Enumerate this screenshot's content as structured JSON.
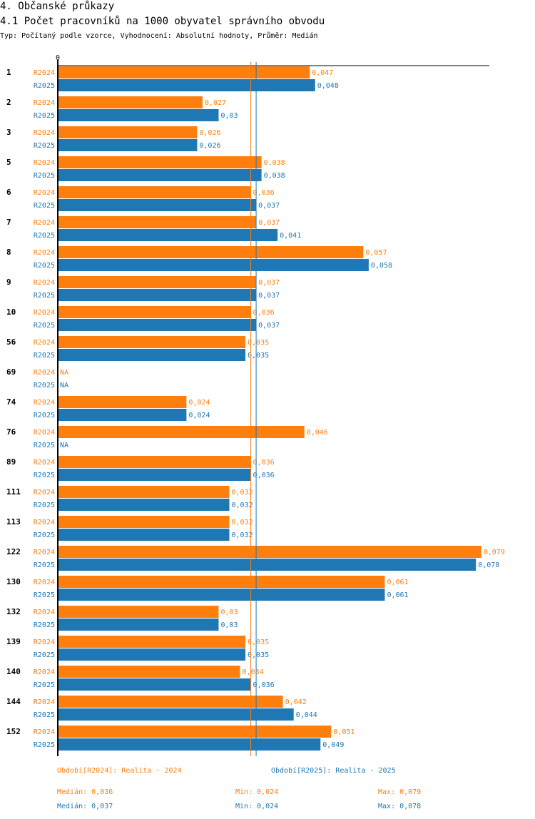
{
  "section_title": "4. Občanské průkazy",
  "chart_title": "4.1 Počet pracovníků na 1000 obyvatel správního obvodu",
  "subtitle": "Typ: Počítaný podle vzorce, Vyhodnocení: Absolutní hodnoty, Průměr: Medián",
  "chart_data": {
    "type": "bar",
    "orientation": "horizontal",
    "title": "4.1 Počet pracovníků na 1000 obyvatel správního obvodu",
    "axis_zero_label": "0",
    "xlim": [
      0,
      0.0805
    ],
    "categories": [
      "1",
      "2",
      "3",
      "5",
      "6",
      "7",
      "8",
      "9",
      "10",
      "56",
      "69",
      "74",
      "76",
      "89",
      "111",
      "113",
      "122",
      "130",
      "132",
      "139",
      "140",
      "144",
      "152"
    ],
    "series": [
      {
        "name": "R2024",
        "color": "#ff7f0e",
        "values": [
          0.047,
          0.027,
          0.026,
          0.038,
          0.036,
          0.037,
          0.057,
          0.037,
          0.036,
          0.035,
          null,
          0.024,
          0.046,
          0.036,
          0.032,
          0.032,
          0.079,
          0.061,
          0.03,
          0.035,
          0.034,
          0.042,
          0.051
        ],
        "labels": [
          "0,047",
          "0,027",
          "0,026",
          "0,038",
          "0,036",
          "0,037",
          "0,057",
          "0,037",
          "0,036",
          "0,035",
          "NA",
          "0,024",
          "0,046",
          "0,036",
          "0,032",
          "0,032",
          "0,079",
          "0,061",
          "0,03",
          "0,035",
          "0,034",
          "0,042",
          "0,051"
        ]
      },
      {
        "name": "R2025",
        "color": "#1f77b4",
        "values": [
          0.048,
          0.03,
          0.026,
          0.038,
          0.037,
          0.041,
          0.058,
          0.037,
          0.037,
          0.035,
          null,
          0.024,
          null,
          0.036,
          0.032,
          0.032,
          0.078,
          0.061,
          0.03,
          0.035,
          0.036,
          0.044,
          0.049
        ],
        "labels": [
          "0,048",
          "0,03",
          "0,026",
          "0,038",
          "0,037",
          "0,041",
          "0,058",
          "0,037",
          "0,037",
          "0,035",
          "NA",
          "0,024",
          "NA",
          "0,036",
          "0,032",
          "0,032",
          "0,078",
          "0,061",
          "0,03",
          "0,035",
          "0,036",
          "0,044",
          "0,049"
        ]
      }
    ],
    "median_lines": [
      {
        "series": "R2024",
        "value": 0.036,
        "color": "#ff7f0e"
      },
      {
        "series": "R2025",
        "value": 0.037,
        "color": "#1f77b4"
      }
    ]
  },
  "legend": {
    "r2024": "Období[R2024]: Realita - 2024",
    "r2025": "Období[R2025]: Realita - 2025"
  },
  "stats": {
    "r2024": {
      "median": "Medián: 0,036",
      "min": "Min: 0,024",
      "max": "Max: 0,079"
    },
    "r2025": {
      "median": "Medián: 0,037",
      "min": "Min: 0,024",
      "max": "Max: 0,078"
    }
  }
}
